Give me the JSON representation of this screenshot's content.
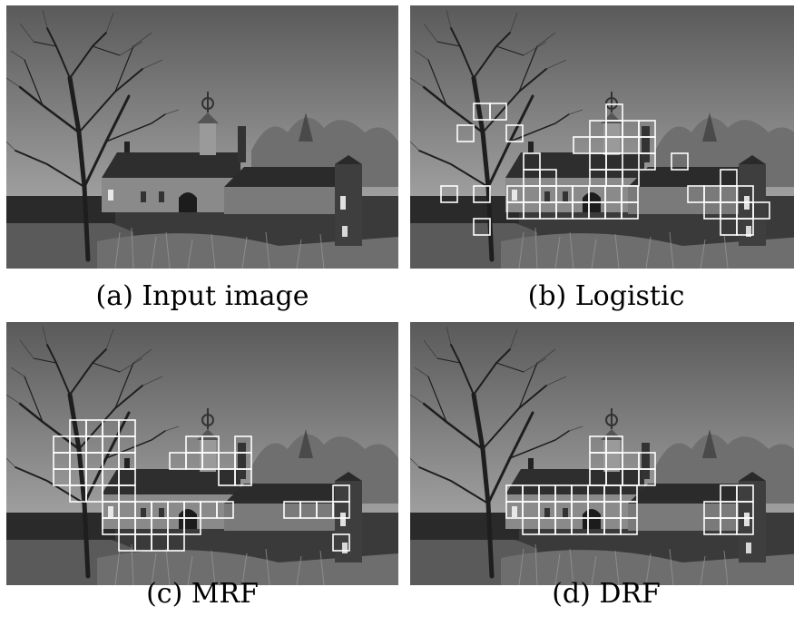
{
  "figure": {
    "panels": [
      {
        "id": "a",
        "caption": "(a) Input image",
        "detections": []
      },
      {
        "id": "b",
        "caption": "(b) Logistic",
        "detections": "logistic"
      },
      {
        "id": "c",
        "caption": "(c) MRF",
        "detections": "mrf"
      },
      {
        "id": "d",
        "caption": "(d) DRF",
        "detections": "drf"
      }
    ]
  },
  "colors": {
    "sky_top": "#5a5a5a",
    "sky_bottom": "#b8b8b8",
    "box": "#ffffff"
  }
}
